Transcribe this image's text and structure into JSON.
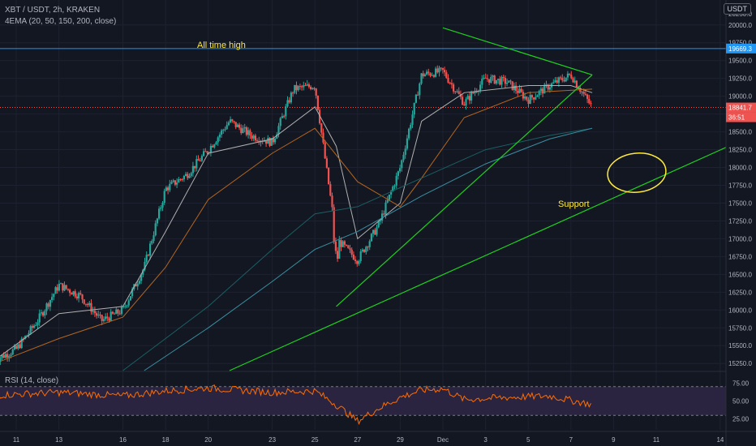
{
  "header": {
    "symbol_line": "XBT / USDT, 2h, KRAKEN",
    "indicator_line": "4EMA (20, 50, 150, 200, close)",
    "currency_button": "USDT"
  },
  "annotations": {
    "ath_label": "All time high",
    "support_label": "Support"
  },
  "rsi_panel": {
    "label": "RSI (14, close)",
    "ticks": [
      "75.00",
      "50.00",
      "25.00"
    ]
  },
  "price_axis": {
    "ticks": [
      "20000.0",
      "19750.0",
      "19500.0",
      "19250.0",
      "19000.0",
      "18750.0",
      "18500.0",
      "18250.0",
      "18000.0",
      "17750.0",
      "17500.0",
      "17250.0",
      "17000.0",
      "16750.0",
      "16500.0",
      "16250.0",
      "16000.0",
      "15750.0",
      "15500.0",
      "15250.0"
    ],
    "top_tag": "20250.0",
    "ath_tag": "19669.3",
    "last_price_tag": "18841.7",
    "countdown_tag": "36:51"
  },
  "time_axis": {
    "labels": [
      "11",
      "13",
      "16",
      "18",
      "20",
      "23",
      "25",
      "27",
      "29",
      "Dec",
      "3",
      "5",
      "7",
      "9",
      "11",
      "14"
    ]
  },
  "colors": {
    "background": "#131722",
    "up": "#26a69a",
    "down": "#ef5350",
    "ath_line": "#2196f3",
    "trendline": "#1fd01f",
    "annotation_text": "#ffeb3b",
    "rsi_line": "#ff6d00",
    "rsi_band": "#2a2440",
    "ema20": "#b0b0b0",
    "ema50": "#b5651d",
    "ema150": "#1b5e63",
    "ema200": "#3a8ea0"
  },
  "chart_data": {
    "type": "candlestick",
    "title": "XBT / USDT, 2h, KRAKEN",
    "ylim": [
      15150,
      20350
    ],
    "yticks": [
      15250,
      15500,
      15750,
      16000,
      16250,
      16500,
      16750,
      17000,
      17250,
      17500,
      17750,
      18000,
      18250,
      18500,
      18750,
      19000,
      19250,
      19500,
      19750,
      20000
    ],
    "all_time_high": 19669.3,
    "last_price": 18841.7,
    "price_path_close": [
      [
        "Nov 10",
        15300
      ],
      [
        "Nov 11",
        15450
      ],
      [
        "Nov 12",
        15850
      ],
      [
        "Nov 13",
        16350
      ],
      [
        "Nov 14",
        16200
      ],
      [
        "Nov 15",
        15850
      ],
      [
        "Nov 16",
        16000
      ],
      [
        "Nov 17",
        16600
      ],
      [
        "Nov 18",
        17700
      ],
      [
        "Nov 19",
        17900
      ],
      [
        "Nov 20",
        18250
      ],
      [
        "Nov 21",
        18650
      ],
      [
        "Nov 22",
        18450
      ],
      [
        "Nov 23",
        18350
      ],
      [
        "Nov 24",
        19100
      ],
      [
        "Nov 25",
        19150
      ],
      [
        "Nov 26",
        17000
      ],
      [
        "Nov 27",
        16700
      ],
      [
        "Nov 28",
        17200
      ],
      [
        "Nov 29",
        18000
      ],
      [
        "Nov 30",
        19300
      ],
      [
        "Dec 1",
        19350
      ],
      [
        "Dec 2",
        18900
      ],
      [
        "Dec 3",
        19250
      ],
      [
        "Dec 4",
        19200
      ],
      [
        "Dec 5",
        18950
      ],
      [
        "Dec 6",
        19150
      ],
      [
        "Dec 7",
        19300
      ],
      [
        "Dec 8",
        18840
      ]
    ],
    "ema_series": [
      {
        "name": "EMA 20",
        "points": [
          [
            "Nov 10",
            15300
          ],
          [
            "Nov 13",
            15950
          ],
          [
            "Nov 16",
            16050
          ],
          [
            "Nov 18",
            17100
          ],
          [
            "Nov 20",
            18200
          ],
          [
            "Nov 23",
            18400
          ],
          [
            "Nov 25",
            18850
          ],
          [
            "Nov 26",
            18300
          ],
          [
            "Nov 27",
            17000
          ],
          [
            "Nov 29",
            17500
          ],
          [
            "Nov 30",
            18650
          ],
          [
            "Dec 2",
            19050
          ],
          [
            "Dec 5",
            19150
          ],
          [
            "Dec 7",
            19150
          ],
          [
            "Dec 8",
            19050
          ]
        ]
      },
      {
        "name": "EMA 50",
        "points": [
          [
            "Nov 10",
            15250
          ],
          [
            "Nov 13",
            15600
          ],
          [
            "Nov 16",
            15900
          ],
          [
            "Nov 18",
            16600
          ],
          [
            "Nov 20",
            17550
          ],
          [
            "Nov 23",
            18200
          ],
          [
            "Nov 25",
            18550
          ],
          [
            "Nov 27",
            17800
          ],
          [
            "Nov 29",
            17450
          ],
          [
            "Nov 30",
            17850
          ],
          [
            "Dec 2",
            18700
          ],
          [
            "Dec 5",
            19050
          ],
          [
            "Dec 8",
            19100
          ]
        ]
      },
      {
        "name": "EMA 150",
        "points": [
          [
            "Nov 16",
            15150
          ],
          [
            "Nov 20",
            16050
          ],
          [
            "Nov 23",
            16850
          ],
          [
            "Nov 25",
            17350
          ],
          [
            "Nov 27",
            17450
          ],
          [
            "Nov 30",
            17850
          ],
          [
            "Dec 3",
            18250
          ],
          [
            "Dec 6",
            18450
          ],
          [
            "Dec 8",
            18550
          ]
        ]
      },
      {
        "name": "EMA 200",
        "points": [
          [
            "Nov 17",
            15150
          ],
          [
            "Nov 20",
            15750
          ],
          [
            "Nov 23",
            16400
          ],
          [
            "Nov 25",
            16850
          ],
          [
            "Nov 27",
            17100
          ],
          [
            "Nov 30",
            17600
          ],
          [
            "Dec 3",
            18050
          ],
          [
            "Dec 6",
            18400
          ],
          [
            "Dec 8",
            18550
          ]
        ]
      }
    ],
    "trendlines": [
      {
        "name": "upper resistance",
        "from": [
          "Dec 1",
          19960
        ],
        "to": [
          "Dec 8",
          19300
        ]
      },
      {
        "name": "rising support (short)",
        "from": [
          "Nov 26",
          16050
        ],
        "to": [
          "Dec 8",
          19300
        ]
      },
      {
        "name": "rising support (long)",
        "from": [
          "Nov 21",
          15150
        ],
        "to": [
          "Dec 15",
          18380
        ]
      }
    ],
    "rsi": {
      "levels": [
        75,
        50,
        25
      ],
      "path": [
        [
          "Nov 10",
          58
        ],
        [
          "Nov 13",
          62
        ],
        [
          "Nov 16",
          57
        ],
        [
          "Nov 18",
          64
        ],
        [
          "Nov 20",
          68
        ],
        [
          "Nov 23",
          62
        ],
        [
          "Nov 25",
          64
        ],
        [
          "Nov 26",
          45
        ],
        [
          "Nov 27",
          22
        ],
        [
          "Nov 28",
          40
        ],
        [
          "Nov 29",
          55
        ],
        [
          "Nov 30",
          65
        ],
        [
          "Dec 1",
          67
        ],
        [
          "Dec 2",
          52
        ],
        [
          "Dec 4",
          55
        ],
        [
          "Dec 6",
          57
        ],
        [
          "Dec 8",
          45
        ]
      ]
    }
  }
}
